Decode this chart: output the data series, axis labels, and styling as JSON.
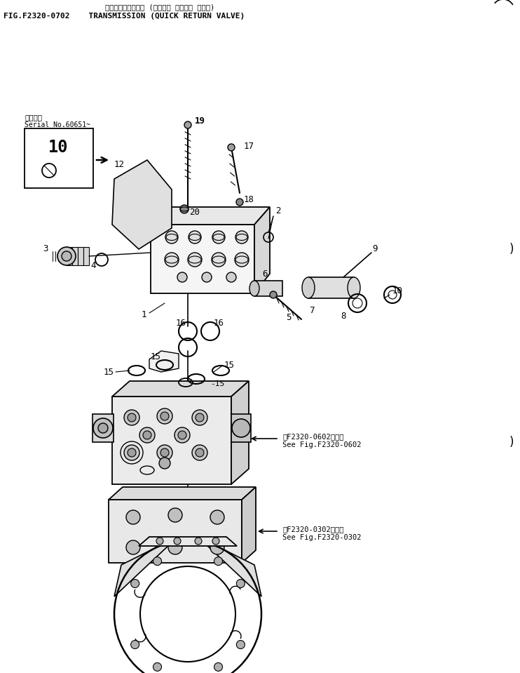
{
  "title_japanese": "トランスミッション (クイック リターン バルブ)",
  "title_english": "FIG.F2320-0702    TRANSMISSION (QUICK RETURN VALVE)",
  "serial_japanese": "適用号機",
  "serial_english": "Serial No.60651~",
  "ref1_japanese": "第F2320-0602図参照",
  "ref1_english": "See Fig.F2320-0602",
  "ref2_japanese": "第F2320-0302図参照",
  "ref2_english": "See Fig.F2320-0302",
  "bg_color": "#ffffff",
  "line_color": "#000000"
}
